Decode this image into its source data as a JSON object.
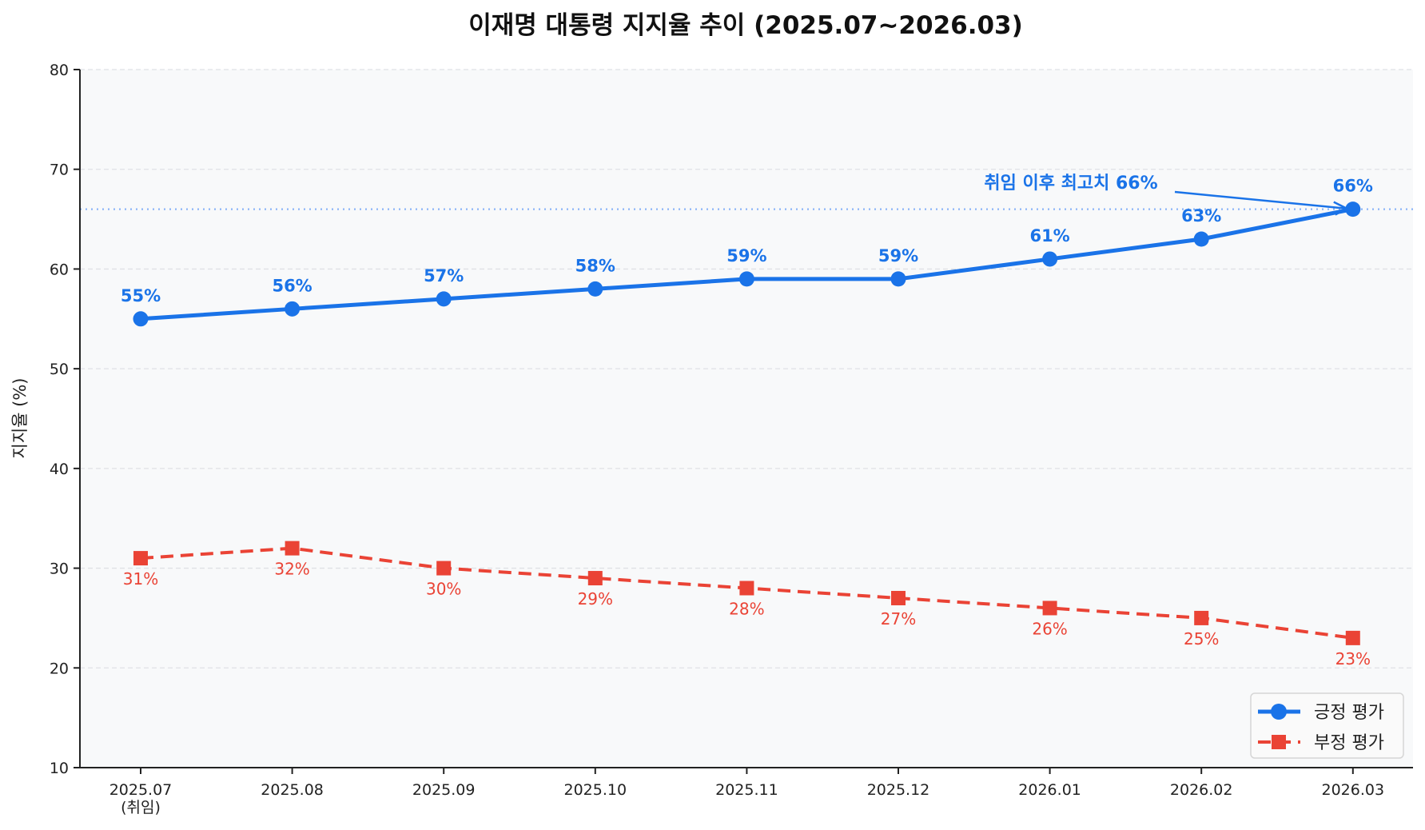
{
  "chart_data": {
    "type": "line",
    "title": "이재명 대통령 지지율 추이 (2025.07~2026.03)",
    "xlabel": "",
    "ylabel": "지지율 (%)",
    "ylim": [
      10,
      80
    ],
    "yticks": [
      10,
      20,
      30,
      40,
      50,
      60,
      70,
      80
    ],
    "categories": [
      "2025.07",
      "2025.08",
      "2025.09",
      "2025.10",
      "2025.11",
      "2025.12",
      "2026.01",
      "2026.02",
      "2026.03"
    ],
    "category_sublabels": [
      "(취임)",
      "",
      "",
      "",
      "",
      "",
      "",
      "",
      ""
    ],
    "grid": "y, dashed",
    "legend_position": "bottom-right",
    "series": [
      {
        "name": "긍정 평가",
        "values": [
          55,
          56,
          57,
          58,
          59,
          59,
          61,
          63,
          66
        ],
        "color": "#1a73e8",
        "marker": "circle",
        "linestyle": "solid",
        "labels": [
          "55%",
          "56%",
          "57%",
          "58%",
          "59%",
          "59%",
          "61%",
          "63%",
          "66%"
        ]
      },
      {
        "name": "부정 평가",
        "values": [
          31,
          32,
          30,
          29,
          28,
          27,
          26,
          25,
          23
        ],
        "color": "#ea4335",
        "marker": "square",
        "linestyle": "dashed",
        "labels": [
          "31%",
          "32%",
          "30%",
          "29%",
          "28%",
          "27%",
          "26%",
          "25%",
          "23%"
        ]
      }
    ],
    "reference_line": {
      "value": 66,
      "style": "dotted",
      "color": "#8ab4f8"
    },
    "annotation": {
      "text": "취임 이후 최고치 66%",
      "target_category": "2026.03",
      "target_value": 66,
      "color": "#1a73e8"
    },
    "background": "#f8f9fa"
  }
}
